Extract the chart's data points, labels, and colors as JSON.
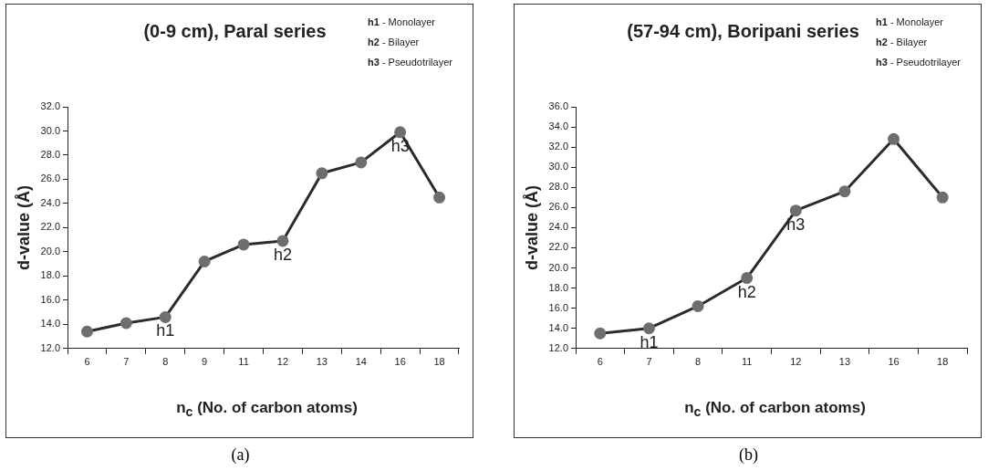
{
  "chart_data": [
    {
      "type": "line",
      "title": "(0-9 cm), Paral series",
      "xlabel": "n$_{c}$ (No. of carbon atoms)",
      "ylabel": "d-value (Å)",
      "categories": [
        "6",
        "7",
        "8",
        "9",
        "11",
        "12",
        "13",
        "14",
        "16",
        "18"
      ],
      "marker": "circle",
      "line_style": "solid",
      "series": [
        {
          "color": "#2b2b2b",
          "values": [
            13.4,
            14.1,
            14.6,
            19.2,
            20.6,
            20.9,
            26.5,
            27.4,
            29.9,
            24.5
          ]
        }
      ],
      "ylim": [
        12,
        32
      ],
      "yticks": [
        {
          "value": 12,
          "label": "12.0"
        },
        {
          "value": 14,
          "label": "14.0"
        },
        {
          "value": 16,
          "label": "16.0"
        },
        {
          "value": 18,
          "label": "18.0"
        },
        {
          "value": 20,
          "label": "20.0"
        },
        {
          "value": 22,
          "label": "22.0"
        },
        {
          "value": 24,
          "label": "24.0"
        },
        {
          "value": 26,
          "label": "26.0"
        },
        {
          "value": 28,
          "label": "28.0"
        },
        {
          "value": 30,
          "label": "30.0"
        },
        {
          "value": 32,
          "label": "32.0"
        }
      ],
      "annotations": [
        {
          "text": "h1",
          "x": "8",
          "y": 14.6
        },
        {
          "text": "h2",
          "x": "12",
          "y": 20.9
        },
        {
          "text": "h3",
          "x": "16",
          "y": 29.9
        },
        "h1 - Monolayer",
        "h2 - Bilayer",
        "h3 - Pseudotrilayer",
        "(a)"
      ]
    },
    {
      "type": "line",
      "title": "(57-94 cm), Boripani series",
      "xlabel": "n$_{c}$ (No. of carbon atoms)",
      "ylabel": "d-value (Å)",
      "categories": [
        "6",
        "7",
        "8",
        "11",
        "12",
        "13",
        "16",
        "18"
      ],
      "marker": "circle",
      "line_style": "solid",
      "series": [
        {
          "color": "#2b2b2b",
          "values": [
            13.5,
            14.0,
            16.2,
            19.0,
            25.7,
            27.6,
            32.8,
            27.0
          ]
        }
      ],
      "ylim": [
        12,
        36
      ],
      "yticks": [
        {
          "value": 12,
          "label": "12.0"
        },
        {
          "value": 14,
          "label": "14.0"
        },
        {
          "value": 16,
          "label": "16.0"
        },
        {
          "value": 18,
          "label": "18.0"
        },
        {
          "value": 20,
          "label": "20.0"
        },
        {
          "value": 22,
          "label": "22.0"
        },
        {
          "value": 24,
          "label": "24.0"
        },
        {
          "value": 26,
          "label": "26.0"
        },
        {
          "value": 28,
          "label": "28.0"
        },
        {
          "value": 30,
          "label": "30.0"
        },
        {
          "value": 32,
          "label": "32.0"
        },
        {
          "value": 34,
          "label": "34.0"
        },
        {
          "value": 36,
          "label": "36.0"
        }
      ],
      "annotations": [
        {
          "text": "h1",
          "x": "7",
          "y": 14.0
        },
        {
          "text": "h2",
          "x": "11",
          "y": 19.0
        },
        {
          "text": "h3",
          "x": "12",
          "y": 25.7
        },
        "h1 - Monolayer",
        "h2 - Bilayer",
        "h3 - Pseudotrilayer",
        "(b)"
      ]
    }
  ]
}
